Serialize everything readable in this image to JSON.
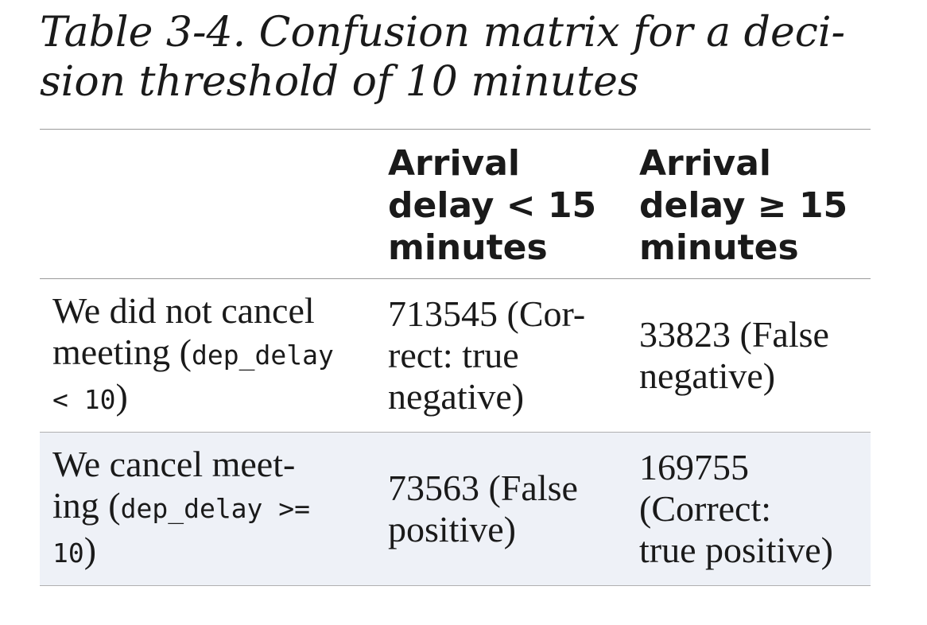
{
  "caption": {
    "line1": "Table 3-4. Confusion matrix for a deci-",
    "line2": "sion threshold of 10 minutes"
  },
  "table": {
    "headers": [
      "",
      [
        "Arrival",
        "delay < 15",
        "minutes"
      ],
      [
        "Arrival",
        "delay ≥ 15",
        "minutes"
      ]
    ],
    "rows": [
      {
        "label_lines": [
          {
            "text": "We did not cancel",
            "code": ""
          },
          {
            "text": "meeting (",
            "code": "dep_delay"
          },
          {
            "text": "",
            "code": "< 10",
            "suffix": ")"
          }
        ],
        "cells": [
          [
            "713545 (Cor-",
            "rect: true",
            "negative)"
          ],
          [
            "33823 (False",
            "negative)"
          ]
        ]
      },
      {
        "label_lines": [
          {
            "text": "We cancel meet-",
            "code": ""
          },
          {
            "text": "ing (",
            "code": "dep_delay >="
          },
          {
            "text": "",
            "code": "10",
            "suffix": ")"
          }
        ],
        "cells": [
          [
            "73563 (False",
            "positive)"
          ],
          [
            "169755",
            "(Correct:",
            "true positive)"
          ]
        ]
      }
    ]
  }
}
